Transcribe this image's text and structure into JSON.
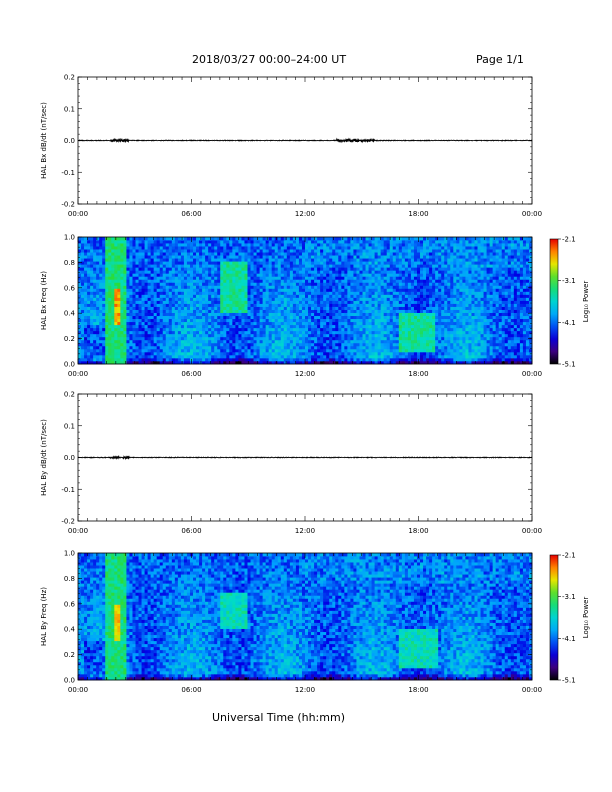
{
  "header": {
    "title": "2018/03/27  00:00–24:00 UT",
    "page": "Page 1/1"
  },
  "footer": {
    "xlabel": "Universal Time (hh:mm)"
  },
  "colors": {
    "trace": "#000000",
    "axis": "#000000",
    "background": "#ffffff"
  },
  "chart_data": [
    {
      "type": "line",
      "ylabel": "HAL Bx dB/dt (nT/sec)",
      "ylim": [
        -0.2,
        0.2
      ],
      "yticks": [
        "0.2",
        "0.1",
        "0.0",
        "-0.1",
        "-0.2"
      ],
      "yticks_values": [
        0.2,
        0.1,
        0.0,
        -0.1,
        -0.2
      ],
      "xticks": [
        "00:00",
        "06:00",
        "12:00",
        "18:00",
        "00:00"
      ],
      "xlim_hours": [
        0,
        24
      ],
      "series": [
        {
          "x_hours": [
            0,
            1.5,
            2.0,
            2.5,
            3.0,
            7.0,
            8.5,
            10.0,
            12.0,
            14.5,
            18.0,
            19.0,
            24.0
          ],
          "y": [
            0.0,
            0.0,
            0.005,
            0.003,
            0.0,
            0.0,
            0.002,
            0.0,
            0.0,
            0.003,
            0.0,
            0.001,
            0.0
          ]
        }
      ]
    },
    {
      "type": "heatmap",
      "ylabel": "HAL Bx Freq (Hz)",
      "ylim": [
        0,
        1.0
      ],
      "yticks": [
        "1.0",
        "0.8",
        "0.6",
        "0.4",
        "0.2",
        "0.0"
      ],
      "yticks_values": [
        1.0,
        0.8,
        0.6,
        0.4,
        0.2,
        0.0
      ],
      "xticks": [
        "00:00",
        "06:00",
        "12:00",
        "18:00",
        "00:00"
      ],
      "xlim_hours": [
        0,
        24
      ],
      "colorbar": {
        "label": "Log₁₀ Power",
        "range": [
          -5.1,
          -2.1
        ],
        "ticks": [
          "-2.1",
          "-3.1",
          "-4.1",
          "-5.1"
        ]
      },
      "features": [
        {
          "x_hours": [
            1.5,
            2.5
          ],
          "freq_hz": [
            0.0,
            1.0
          ],
          "log_power": -3.3
        },
        {
          "x_hours": [
            1.9,
            2.3
          ],
          "freq_hz": [
            0.3,
            0.6
          ],
          "log_power": -2.5
        },
        {
          "x_hours": [
            7.5,
            9.0
          ],
          "freq_hz": [
            0.4,
            0.8
          ],
          "log_power": -3.4
        },
        {
          "x_hours": [
            17.0,
            18.8
          ],
          "freq_hz": [
            0.1,
            0.4
          ],
          "log_power": -3.4
        }
      ]
    },
    {
      "type": "line",
      "ylabel": "HAL By dB/dt (nT/sec)",
      "ylim": [
        -0.2,
        0.2
      ],
      "yticks": [
        "0.2",
        "0.1",
        "0.0",
        "-0.1",
        "-0.2"
      ],
      "yticks_values": [
        0.2,
        0.1,
        0.0,
        -0.1,
        -0.2
      ],
      "xticks": [
        "00:00",
        "06:00",
        "12:00",
        "18:00",
        "00:00"
      ],
      "xlim_hours": [
        0,
        24
      ],
      "series": [
        {
          "x_hours": [
            0,
            1.5,
            2.0,
            2.5,
            3.0,
            8.0,
            12.0,
            14.5,
            18.0,
            24.0
          ],
          "y": [
            0.0,
            0.0,
            -0.005,
            0.004,
            0.0,
            0.0,
            0.0,
            0.001,
            0.0,
            0.0
          ]
        }
      ]
    },
    {
      "type": "heatmap",
      "ylabel": "HAL By Freq (Hz)",
      "ylim": [
        0,
        1.0
      ],
      "yticks": [
        "1.0",
        "0.8",
        "0.6",
        "0.4",
        "0.2",
        "0.0"
      ],
      "yticks_values": [
        1.0,
        0.8,
        0.6,
        0.4,
        0.2,
        0.0
      ],
      "xticks": [
        "00:00",
        "06:00",
        "12:00",
        "18:00",
        "00:00"
      ],
      "xlim_hours": [
        0,
        24
      ],
      "colorbar": {
        "label": "Log₁₀ Power",
        "range": [
          -5.1,
          -2.1
        ],
        "ticks": [
          "-2.1",
          "-3.1",
          "-4.1",
          "-5.1"
        ]
      },
      "features": [
        {
          "x_hours": [
            1.5,
            2.5
          ],
          "freq_hz": [
            0.0,
            1.0
          ],
          "log_power": -3.3
        },
        {
          "x_hours": [
            1.9,
            2.3
          ],
          "freq_hz": [
            0.3,
            0.6
          ],
          "log_power": -2.6
        },
        {
          "x_hours": [
            7.5,
            9.0
          ],
          "freq_hz": [
            0.4,
            0.7
          ],
          "log_power": -3.5
        },
        {
          "x_hours": [
            17.0,
            19.0
          ],
          "freq_hz": [
            0.1,
            0.4
          ],
          "log_power": -3.5
        }
      ]
    }
  ]
}
